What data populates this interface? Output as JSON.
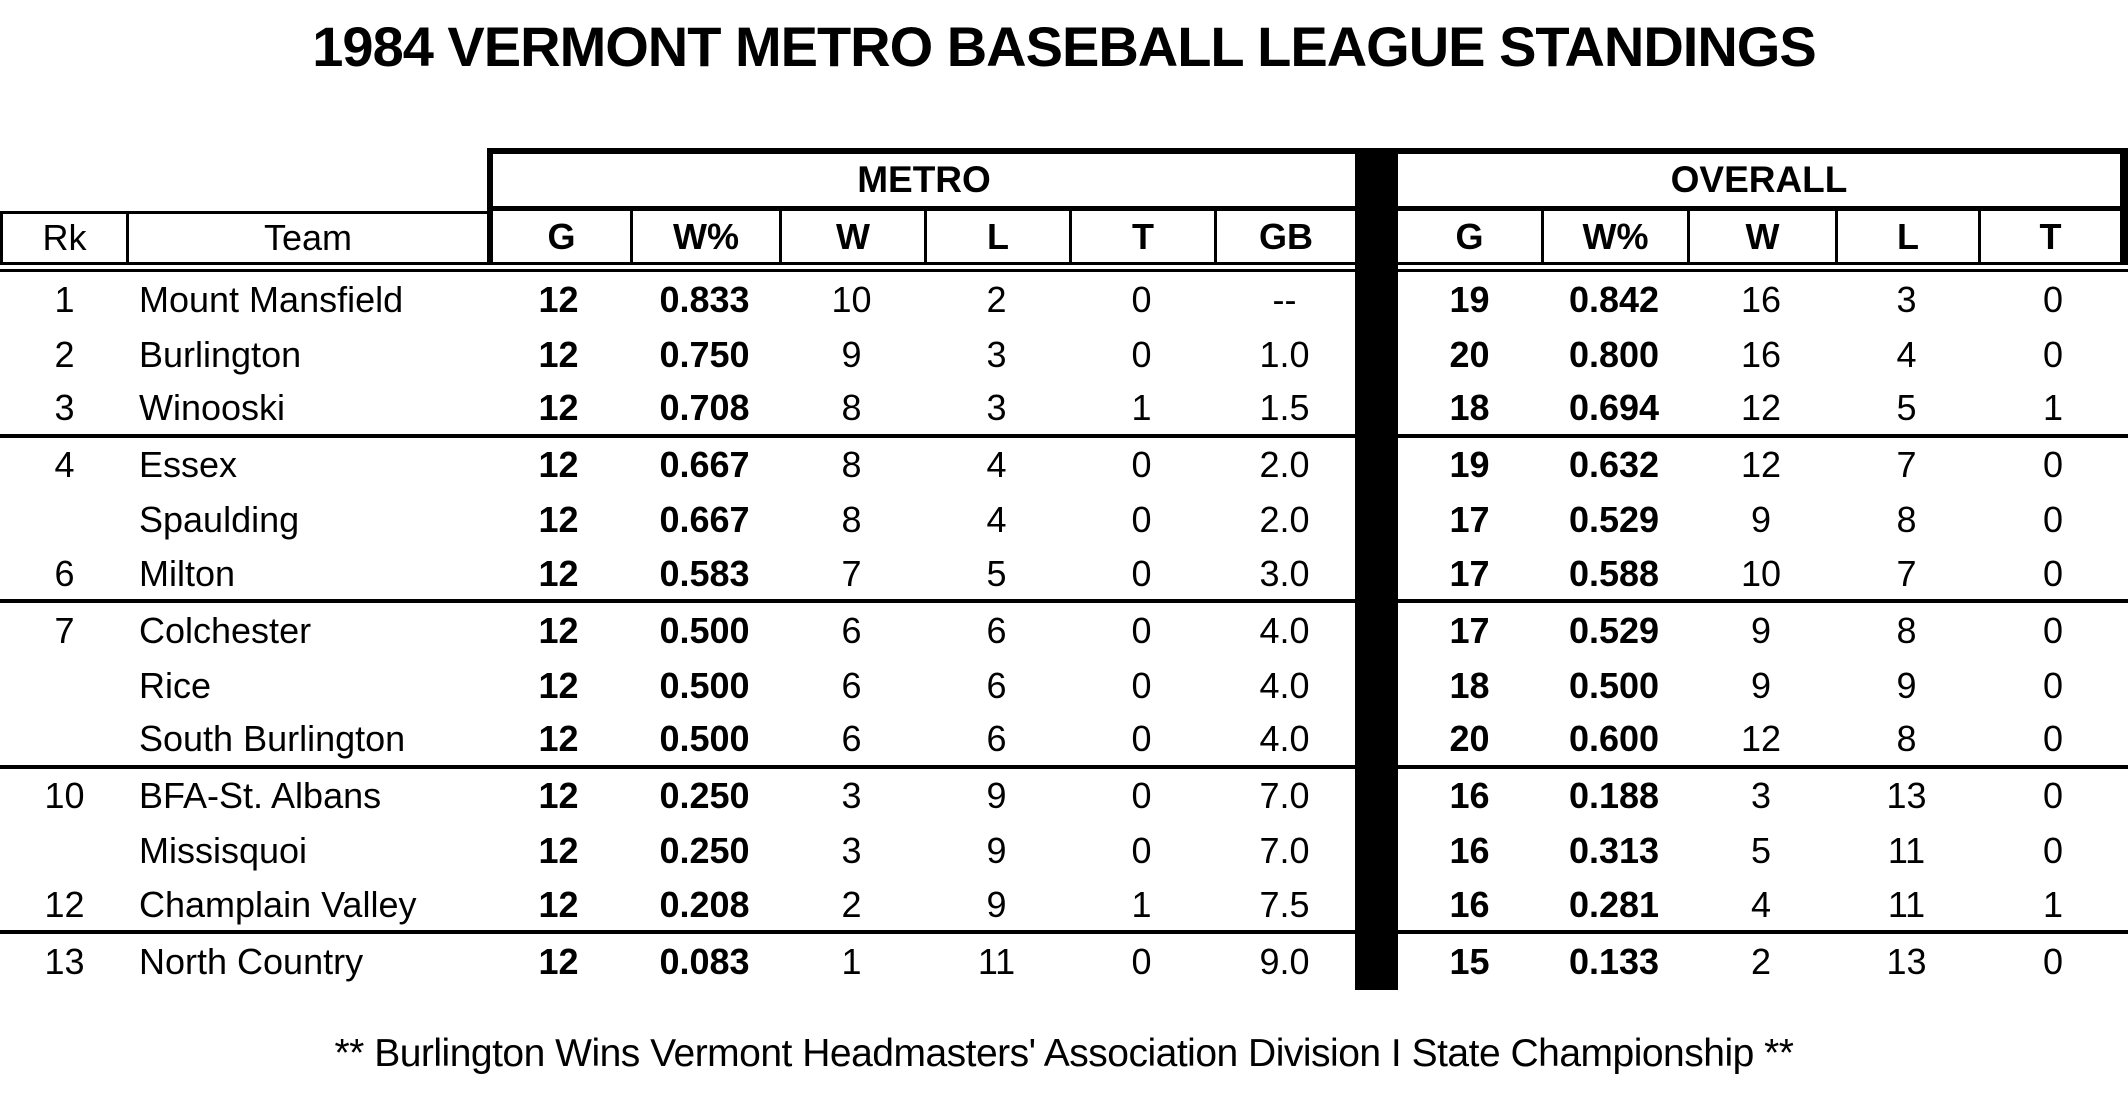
{
  "title": "1984 VERMONT METRO BASEBALL LEAGUE STANDINGS",
  "table": {
    "groups": {
      "metro": "METRO",
      "overall": "OVERALL"
    },
    "columns": {
      "rk": "Rk",
      "team": "Team",
      "g": "G",
      "wpct": "W%",
      "w": "W",
      "l": "L",
      "t": "T",
      "gb": "GB"
    },
    "rows": [
      {
        "rk": "1",
        "team": "Mount Mansfield",
        "metro": {
          "g": "12",
          "wpct": "0.833",
          "w": "10",
          "l": "2",
          "t": "0",
          "gb": "--"
        },
        "overall": {
          "g": "19",
          "wpct": "0.842",
          "w": "16",
          "l": "3",
          "t": "0"
        },
        "divider": false
      },
      {
        "rk": "2",
        "team": "Burlington",
        "metro": {
          "g": "12",
          "wpct": "0.750",
          "w": "9",
          "l": "3",
          "t": "0",
          "gb": "1.0"
        },
        "overall": {
          "g": "20",
          "wpct": "0.800",
          "w": "16",
          "l": "4",
          "t": "0"
        },
        "divider": false
      },
      {
        "rk": "3",
        "team": "Winooski",
        "metro": {
          "g": "12",
          "wpct": "0.708",
          "w": "8",
          "l": "3",
          "t": "1",
          "gb": "1.5"
        },
        "overall": {
          "g": "18",
          "wpct": "0.694",
          "w": "12",
          "l": "5",
          "t": "1"
        },
        "divider": true
      },
      {
        "rk": "4",
        "team": "Essex",
        "metro": {
          "g": "12",
          "wpct": "0.667",
          "w": "8",
          "l": "4",
          "t": "0",
          "gb": "2.0"
        },
        "overall": {
          "g": "19",
          "wpct": "0.632",
          "w": "12",
          "l": "7",
          "t": "0"
        },
        "divider": false
      },
      {
        "rk": "",
        "team": "Spaulding",
        "metro": {
          "g": "12",
          "wpct": "0.667",
          "w": "8",
          "l": "4",
          "t": "0",
          "gb": "2.0"
        },
        "overall": {
          "g": "17",
          "wpct": "0.529",
          "w": "9",
          "l": "8",
          "t": "0"
        },
        "divider": false
      },
      {
        "rk": "6",
        "team": "Milton",
        "metro": {
          "g": "12",
          "wpct": "0.583",
          "w": "7",
          "l": "5",
          "t": "0",
          "gb": "3.0"
        },
        "overall": {
          "g": "17",
          "wpct": "0.588",
          "w": "10",
          "l": "7",
          "t": "0"
        },
        "divider": true
      },
      {
        "rk": "7",
        "team": "Colchester",
        "metro": {
          "g": "12",
          "wpct": "0.500",
          "w": "6",
          "l": "6",
          "t": "0",
          "gb": "4.0"
        },
        "overall": {
          "g": "17",
          "wpct": "0.529",
          "w": "9",
          "l": "8",
          "t": "0"
        },
        "divider": false
      },
      {
        "rk": "",
        "team": "Rice",
        "metro": {
          "g": "12",
          "wpct": "0.500",
          "w": "6",
          "l": "6",
          "t": "0",
          "gb": "4.0"
        },
        "overall": {
          "g": "18",
          "wpct": "0.500",
          "w": "9",
          "l": "9",
          "t": "0"
        },
        "divider": false
      },
      {
        "rk": "",
        "team": "South Burlington",
        "metro": {
          "g": "12",
          "wpct": "0.500",
          "w": "6",
          "l": "6",
          "t": "0",
          "gb": "4.0"
        },
        "overall": {
          "g": "20",
          "wpct": "0.600",
          "w": "12",
          "l": "8",
          "t": "0"
        },
        "divider": true
      },
      {
        "rk": "10",
        "team": "BFA-St. Albans",
        "metro": {
          "g": "12",
          "wpct": "0.250",
          "w": "3",
          "l": "9",
          "t": "0",
          "gb": "7.0"
        },
        "overall": {
          "g": "16",
          "wpct": "0.188",
          "w": "3",
          "l": "13",
          "t": "0"
        },
        "divider": false
      },
      {
        "rk": "",
        "team": "Missisquoi",
        "metro": {
          "g": "12",
          "wpct": "0.250",
          "w": "3",
          "l": "9",
          "t": "0",
          "gb": "7.0"
        },
        "overall": {
          "g": "16",
          "wpct": "0.313",
          "w": "5",
          "l": "11",
          "t": "0"
        },
        "divider": false
      },
      {
        "rk": "12",
        "team": "Champlain Valley",
        "metro": {
          "g": "12",
          "wpct": "0.208",
          "w": "2",
          "l": "9",
          "t": "1",
          "gb": "7.5"
        },
        "overall": {
          "g": "16",
          "wpct": "0.281",
          "w": "4",
          "l": "11",
          "t": "1"
        },
        "divider": true
      },
      {
        "rk": "13",
        "team": "North Country",
        "metro": {
          "g": "12",
          "wpct": "0.083",
          "w": "1",
          "l": "11",
          "t": "0",
          "gb": "9.0"
        },
        "overall": {
          "g": "15",
          "wpct": "0.133",
          "w": "2",
          "l": "13",
          "t": "0"
        },
        "divider": false
      }
    ]
  },
  "footer_note": "** Burlington Wins Vermont Headmasters' Association Division I State Championship **",
  "colors": {
    "ink": "#000000",
    "background": "#ffffff"
  }
}
